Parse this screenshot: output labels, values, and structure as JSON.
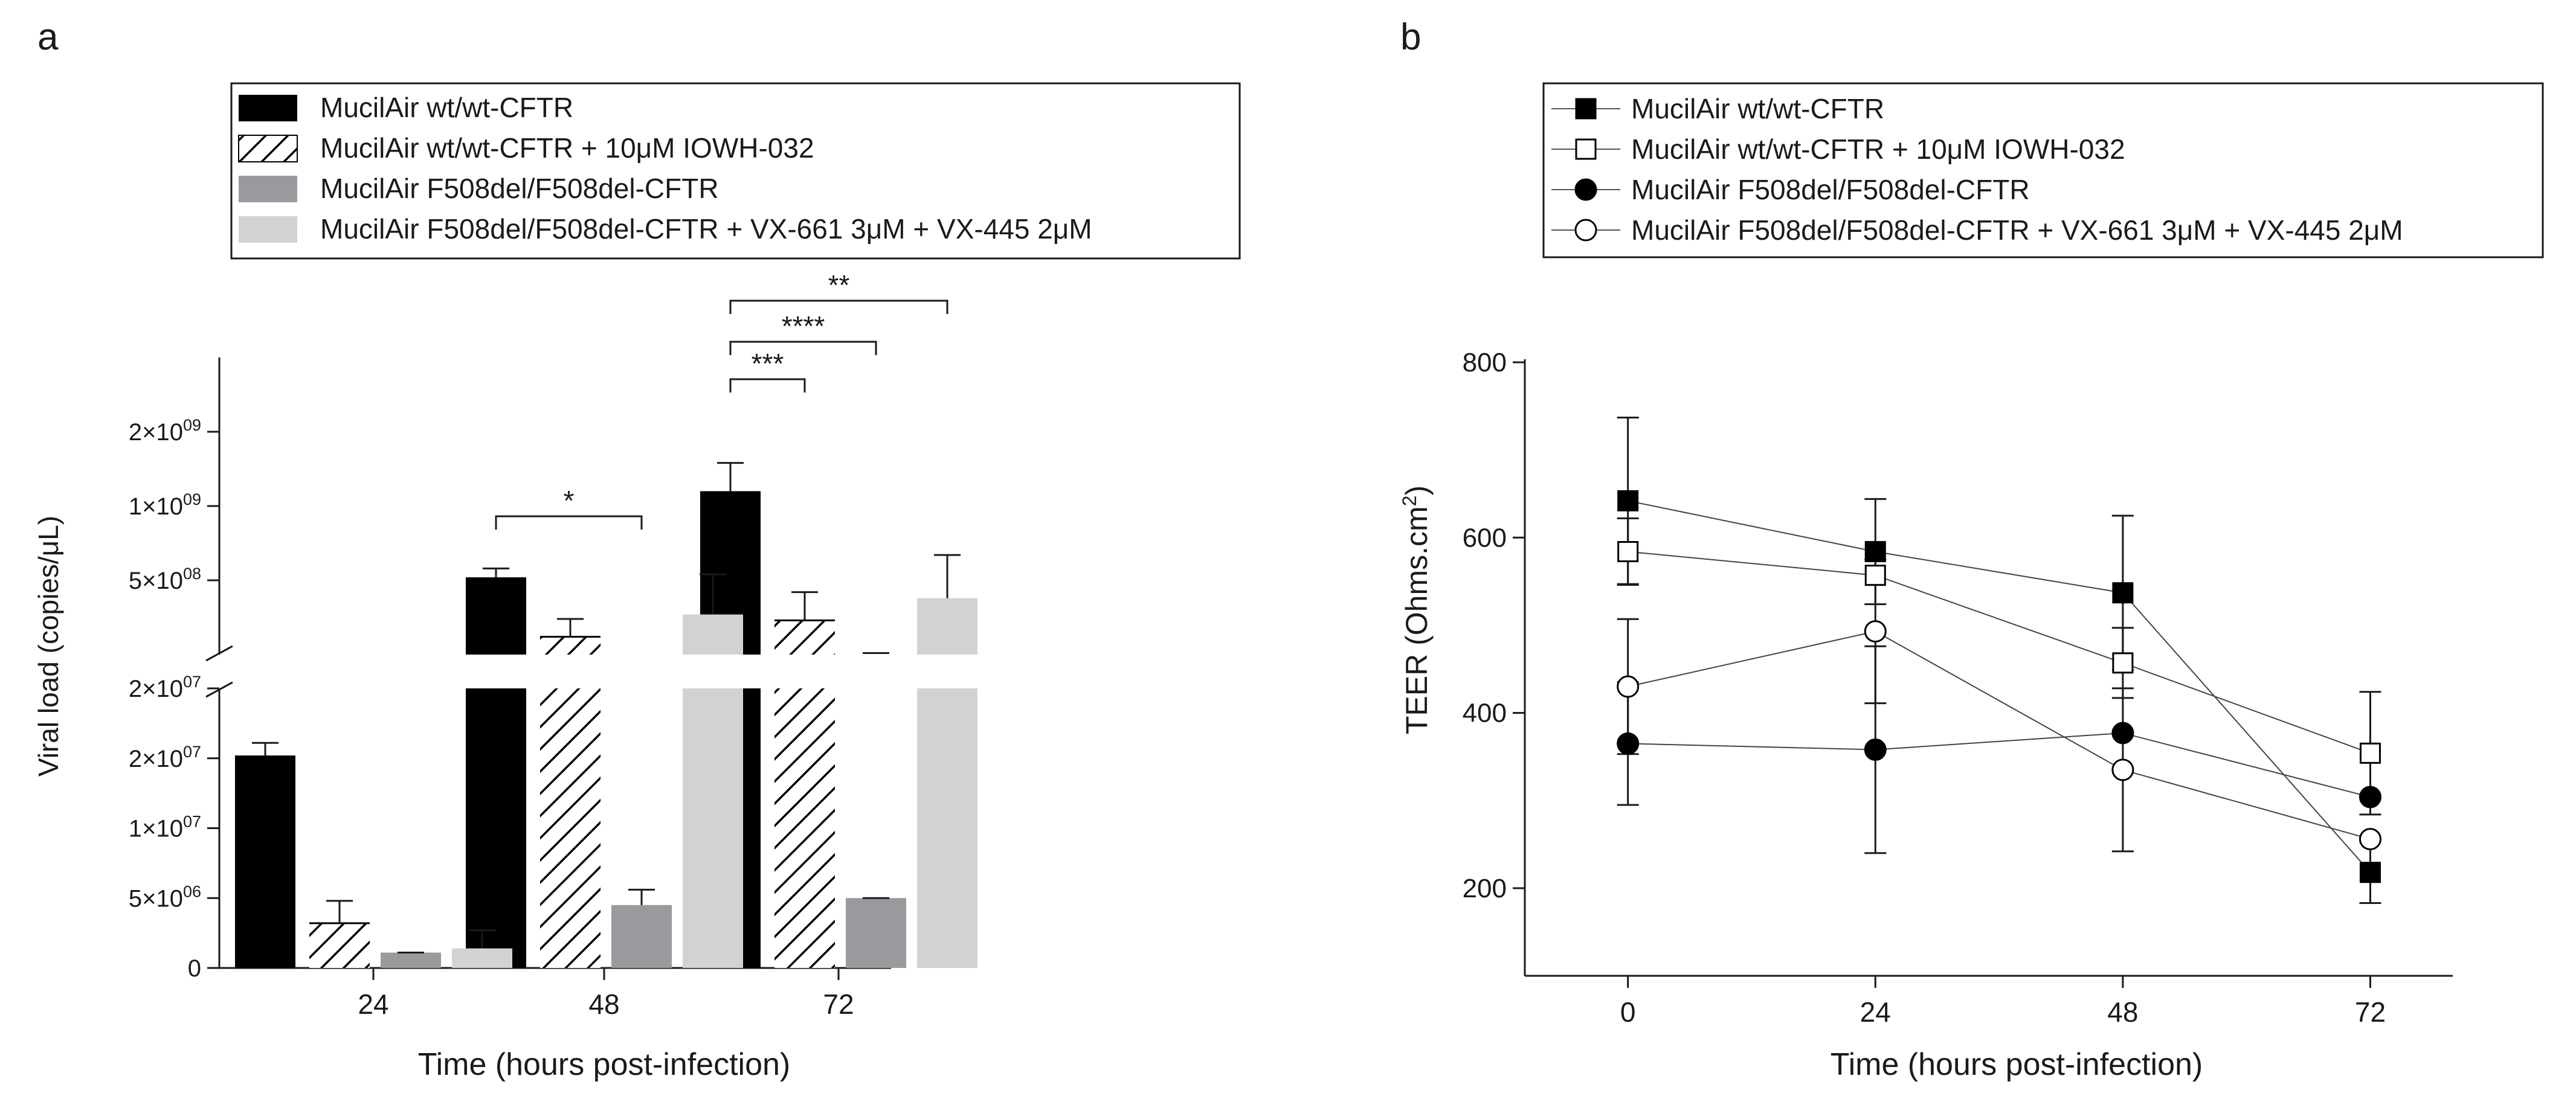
{
  "colors": {
    "wt": "#000000",
    "wt_iowh": "#ffffff",
    "f508": "#9a9a9e",
    "f508_vx": "#d2d2d4",
    "ink": "#1a1a1a"
  },
  "chart_data": [
    {
      "panel": "a",
      "type": "bar",
      "xlabel": "Time (hours post-infection)",
      "ylabel": "Viral load (copies/μL)",
      "categories": [
        "24",
        "48",
        "72"
      ],
      "axis_break": true,
      "lower_ylim": [
        0,
        20000000
      ],
      "lower_ticks": [
        {
          "value": 0,
          "label": "0"
        },
        {
          "value": 5000000,
          "label": "5×10",
          "exp": "06"
        },
        {
          "value": 10000000,
          "label": "1×10",
          "exp": "07"
        },
        {
          "value": 15000000,
          "label": "2×10",
          "exp": "07"
        },
        {
          "value": 20000000,
          "label": "2×10",
          "exp": "07"
        }
      ],
      "upper_ylim": [
        0,
        2000000000
      ],
      "upper_ticks": [
        {
          "value": 500000000,
          "label": "5×10",
          "exp": "08"
        },
        {
          "value": 1000000000,
          "label": "1×10",
          "exp": "09"
        },
        {
          "value": 1500000000,
          "label": "2×10",
          "exp": "09"
        }
      ],
      "series": [
        {
          "name": "MucilAir wt/wt-CFTR",
          "fill": "solid-black",
          "values": [
            15200000,
            520000000,
            1100000000
          ],
          "err": [
            900000,
            60000000,
            190000000
          ]
        },
        {
          "name": "MucilAir wt/wt-CFTR + 10μM IOWH-032",
          "fill": "hatched",
          "values": [
            3200000,
            120000000,
            230000000
          ],
          "err": [
            1600000,
            120000000,
            190000000
          ]
        },
        {
          "name": "MucilAir F508del/F508del-CFTR",
          "fill": "dark-grey",
          "values": [
            1100000,
            4500000,
            5000000
          ],
          "err": [
            0,
            1100000,
            0
          ]
        },
        {
          "name": "MucilAir F508del/F508del-CFTR + VX-661 3μM + VX-445 2μM",
          "fill": "light-grey",
          "values": [
            1400000,
            270000000,
            380000000
          ],
          "err": [
            1300000,
            270000000,
            290000000
          ]
        }
      ],
      "significance": [
        {
          "time": "48",
          "from": 0,
          "to": 2,
          "label": "*"
        },
        {
          "time": "72",
          "from": 0,
          "to": 1,
          "label": "***"
        },
        {
          "time": "72",
          "from": 0,
          "to": 2,
          "label": "****"
        },
        {
          "time": "72",
          "from": 0,
          "to": 3,
          "label": "**"
        }
      ]
    },
    {
      "panel": "b",
      "type": "line",
      "xlabel": "Time (hours post-infection)",
      "ylabel": "TEER (Ohms.cm",
      "ylabel_sup": "2",
      "ylabel_tail": ")",
      "x": [
        0,
        24,
        48,
        72
      ],
      "xlim": [
        -10,
        80
      ],
      "ylim": [
        100,
        800
      ],
      "yticks": [
        200,
        400,
        600,
        800
      ],
      "xticks": [
        0,
        24,
        48,
        72
      ],
      "series": [
        {
          "name": "MucilAir wt/wt-CFTR",
          "marker": "square-filled",
          "values": [
            642,
            584,
            537,
            218
          ],
          "err": [
            95,
            60,
            88,
            35
          ]
        },
        {
          "name": "MucilAir wt/wt-CFTR + 10μM IOWH-032",
          "marker": "square-open",
          "values": [
            584,
            557,
            457,
            354
          ],
          "err": [
            38,
            0,
            40,
            70
          ]
        },
        {
          "name": "MucilAir F508del/F508del-CFTR",
          "marker": "circle-filled",
          "values": [
            365,
            358,
            377,
            304
          ],
          "err": [
            70,
            118,
            0,
            0
          ]
        },
        {
          "name": "MucilAir F508del/F508del-CFTR + VX-661 3μM + VX-445 2μM",
          "marker": "circle-open",
          "values": [
            430,
            493,
            335,
            256
          ],
          "err": [
            77,
            82,
            93,
            0
          ]
        }
      ]
    }
  ]
}
